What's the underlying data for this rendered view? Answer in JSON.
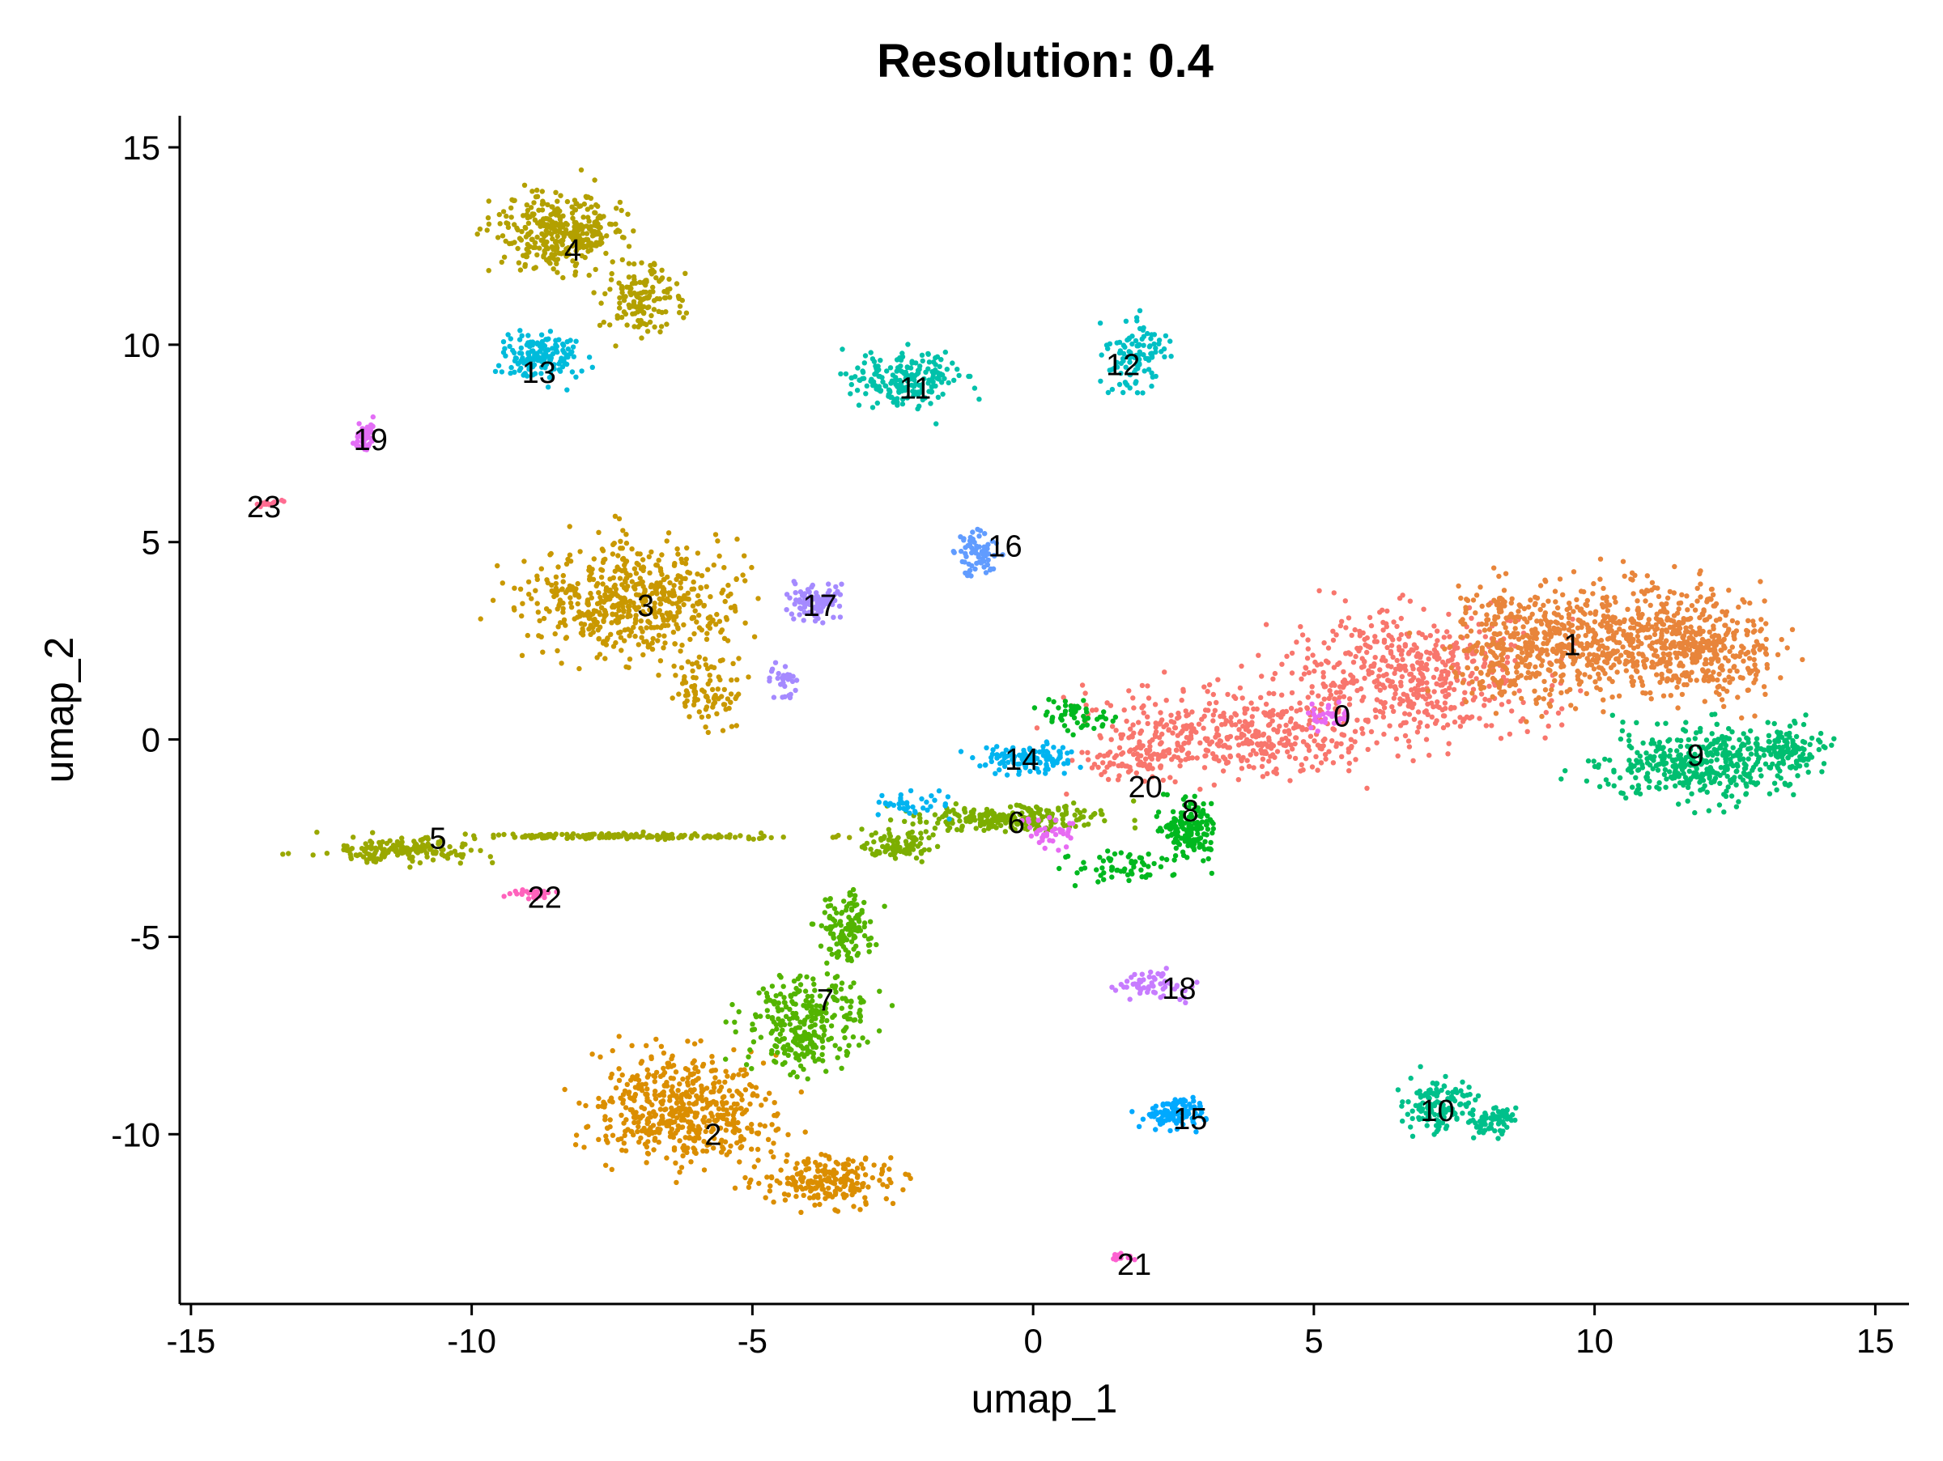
{
  "chart_data": {
    "type": "scatter",
    "title": "Resolution: 0.4",
    "xlabel": "umap_1",
    "ylabel": "umap_2",
    "xlim": [
      -15.2,
      15.6
    ],
    "ylim": [
      -14.3,
      15.8
    ],
    "x_ticks": [
      -15,
      -10,
      -5,
      0,
      5,
      10,
      15
    ],
    "y_ticks": [
      -10,
      -5,
      0,
      5,
      10,
      15
    ],
    "x_tick_labels": [
      "-15",
      "-10",
      "-5",
      "0",
      "5",
      "10",
      "15"
    ],
    "y_tick_labels": [
      "-10",
      "-5",
      "0",
      "5",
      "10",
      "15"
    ],
    "grid": false,
    "legend": "none",
    "clusters": [
      {
        "name": "0",
        "label_x": 5.5,
        "label_y": 0.6,
        "color": "#F8766D",
        "blobs": [
          [
            3.5,
            0.2,
            2.6,
            1.1,
            420
          ],
          [
            6.8,
            1.6,
            2.4,
            1.5,
            520
          ],
          [
            1.8,
            -0.5,
            1.0,
            0.6,
            80
          ]
        ]
      },
      {
        "name": "1",
        "label_x": 9.6,
        "label_y": 2.4,
        "color": "#E8853B",
        "blobs": [
          [
            10.2,
            2.6,
            2.4,
            1.4,
            640
          ],
          [
            12.0,
            2.2,
            1.2,
            1.2,
            280
          ],
          [
            8.6,
            2.2,
            1.0,
            1.4,
            160
          ]
        ]
      },
      {
        "name": "2",
        "label_x": -5.7,
        "label_y": -10.0,
        "color": "#DB8E00",
        "blobs": [
          [
            -6.2,
            -9.4,
            1.6,
            1.3,
            520
          ],
          [
            -3.6,
            -11.2,
            1.2,
            0.6,
            220
          ]
        ]
      },
      {
        "name": "3",
        "label_x": -6.9,
        "label_y": 3.4,
        "color": "#C99800",
        "blobs": [
          [
            -7.2,
            3.6,
            1.9,
            1.4,
            560
          ],
          [
            -5.8,
            1.2,
            0.6,
            0.9,
            90
          ]
        ]
      },
      {
        "name": "4",
        "label_x": -8.2,
        "label_y": 12.4,
        "color": "#B3A000",
        "blobs": [
          [
            -8.5,
            12.9,
            1.1,
            1.0,
            340
          ],
          [
            -7.0,
            11.2,
            0.7,
            1.0,
            140
          ]
        ]
      },
      {
        "name": "5",
        "label_x": -10.6,
        "label_y": -2.5,
        "color": "#9AA800",
        "blobs": [
          [
            -11.3,
            -2.8,
            1.3,
            0.3,
            170
          ],
          [
            -7.0,
            -2.45,
            3.0,
            0.07,
            170
          ]
        ]
      },
      {
        "name": "6",
        "label_x": -0.3,
        "label_y": -2.1,
        "color": "#7CAE00",
        "blobs": [
          [
            -0.5,
            -2.0,
            1.6,
            0.35,
            240
          ],
          [
            -2.4,
            -2.7,
            0.6,
            0.4,
            90
          ]
        ]
      },
      {
        "name": "7",
        "label_x": -3.7,
        "label_y": -6.6,
        "color": "#53B400",
        "blobs": [
          [
            -4.0,
            -7.2,
            1.0,
            1.1,
            290
          ],
          [
            -3.3,
            -4.8,
            0.5,
            0.8,
            130
          ]
        ]
      },
      {
        "name": "8",
        "label_x": 2.8,
        "label_y": -1.8,
        "color": "#00B81F",
        "blobs": [
          [
            2.8,
            -2.3,
            0.5,
            0.8,
            150
          ],
          [
            1.6,
            -3.2,
            0.8,
            0.4,
            60
          ],
          [
            0.8,
            0.6,
            0.7,
            0.4,
            50
          ]
        ]
      },
      {
        "name": "9",
        "label_x": 11.8,
        "label_y": -0.4,
        "color": "#00BE70",
        "blobs": [
          [
            11.8,
            -0.6,
            1.7,
            0.9,
            420
          ],
          [
            13.5,
            -0.2,
            0.6,
            0.6,
            90
          ]
        ]
      },
      {
        "name": "10",
        "label_x": 7.2,
        "label_y": -9.4,
        "color": "#00C08B",
        "blobs": [
          [
            7.2,
            -9.2,
            0.6,
            0.7,
            140
          ],
          [
            8.2,
            -9.7,
            0.4,
            0.4,
            70
          ]
        ]
      },
      {
        "name": "11",
        "label_x": -2.1,
        "label_y": 8.9,
        "color": "#00C1AA",
        "blobs": [
          [
            -2.3,
            9.1,
            1.0,
            0.7,
            190
          ]
        ]
      },
      {
        "name": "12",
        "label_x": 1.6,
        "label_y": 9.5,
        "color": "#00BFC4",
        "blobs": [
          [
            1.8,
            9.7,
            0.5,
            0.8,
            110
          ]
        ]
      },
      {
        "name": "13",
        "label_x": -8.8,
        "label_y": 9.3,
        "color": "#00BBDB",
        "blobs": [
          [
            -8.8,
            9.7,
            0.7,
            0.6,
            160
          ]
        ]
      },
      {
        "name": "14",
        "label_x": -0.2,
        "label_y": -0.5,
        "color": "#00B4F0",
        "blobs": [
          [
            -0.1,
            -0.5,
            0.9,
            0.35,
            120
          ],
          [
            -2.2,
            -1.6,
            0.6,
            0.3,
            40
          ]
        ]
      },
      {
        "name": "15",
        "label_x": 2.8,
        "label_y": -9.6,
        "color": "#00A9FF",
        "blobs": [
          [
            2.5,
            -9.5,
            0.6,
            0.4,
            110
          ]
        ]
      },
      {
        "name": "16",
        "label_x": -0.5,
        "label_y": 4.9,
        "color": "#619CFF",
        "blobs": [
          [
            -1.0,
            4.7,
            0.4,
            0.6,
            70
          ]
        ]
      },
      {
        "name": "17",
        "label_x": -3.8,
        "label_y": 3.4,
        "color": "#A58AFF",
        "blobs": [
          [
            -3.9,
            3.5,
            0.5,
            0.5,
            90
          ],
          [
            -4.4,
            1.5,
            0.3,
            0.8,
            30
          ]
        ]
      },
      {
        "name": "18",
        "label_x": 2.6,
        "label_y": -6.3,
        "color": "#C77CFF",
        "blobs": [
          [
            2.2,
            -6.2,
            0.6,
            0.35,
            60
          ]
        ]
      },
      {
        "name": "19",
        "label_x": -11.8,
        "label_y": 7.6,
        "color": "#E36EF6",
        "blobs": [
          [
            -11.9,
            7.7,
            0.2,
            0.35,
            60
          ]
        ]
      },
      {
        "name": "20",
        "label_x": 2.0,
        "label_y": -1.2,
        "color": "#E76BF3",
        "blobs": [
          [
            5.2,
            0.6,
            0.4,
            0.3,
            30
          ],
          [
            0.3,
            -2.3,
            0.5,
            0.4,
            40
          ]
        ]
      },
      {
        "name": "21",
        "label_x": 1.8,
        "label_y": -13.3,
        "color": "#FD61D1",
        "blobs": [
          [
            1.6,
            -13.1,
            0.2,
            0.1,
            12
          ]
        ]
      },
      {
        "name": "22",
        "label_x": -8.7,
        "label_y": -4.0,
        "color": "#FF62BC",
        "blobs": [
          [
            -8.9,
            -3.9,
            0.35,
            0.12,
            30
          ]
        ]
      },
      {
        "name": "23",
        "label_x": -13.7,
        "label_y": 5.9,
        "color": "#FF6C91",
        "blobs": [
          [
            -13.6,
            6.0,
            0.25,
            0.08,
            14
          ]
        ]
      }
    ]
  }
}
